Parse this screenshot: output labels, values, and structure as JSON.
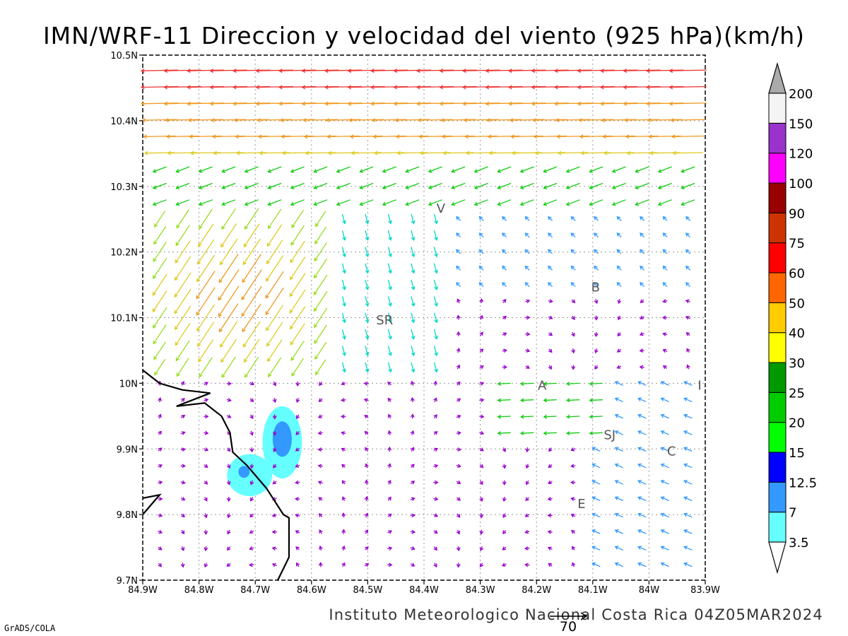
{
  "title": "IMN/WRF-11 Direccion y velocidad del viento (925 hPa)(km/h)",
  "footer": "Instituto Meteorologico Nacional Costa Rica 04Z05MAR2024",
  "credit": "GrADS/COLA",
  "reference_vector_label": "70",
  "map": {
    "lon_range": [
      -84.9,
      -83.9
    ],
    "lat_range": [
      9.7,
      10.5
    ],
    "lon_ticks": [
      {
        "value": -84.9,
        "label": "84.9W"
      },
      {
        "value": -84.8,
        "label": "84.8W"
      },
      {
        "value": -84.7,
        "label": "84.7W"
      },
      {
        "value": -84.6,
        "label": "84.6W"
      },
      {
        "value": -84.5,
        "label": "84.5W"
      },
      {
        "value": -84.4,
        "label": "84.4W"
      },
      {
        "value": -84.3,
        "label": "84.3W"
      },
      {
        "value": -84.2,
        "label": "84.2W"
      },
      {
        "value": -84.1,
        "label": "84.1W"
      },
      {
        "value": -84.0,
        "label": "84W"
      },
      {
        "value": -83.9,
        "label": "83.9W"
      }
    ],
    "lat_ticks": [
      {
        "value": 9.7,
        "label": "9.7N"
      },
      {
        "value": 9.8,
        "label": "9.8N"
      },
      {
        "value": 9.9,
        "label": "9.9N"
      },
      {
        "value": 10.0,
        "label": "10N"
      },
      {
        "value": 10.1,
        "label": "10.1N"
      },
      {
        "value": 10.2,
        "label": "10.2N"
      },
      {
        "value": 10.3,
        "label": "10.3N"
      },
      {
        "value": 10.4,
        "label": "10.4N"
      },
      {
        "value": 10.5,
        "label": "10.5N"
      }
    ],
    "grid": true,
    "place_labels": [
      {
        "text": "V",
        "lon": -84.37,
        "lat": 10.26
      },
      {
        "text": "B",
        "lon": -84.095,
        "lat": 10.14
      },
      {
        "text": "SR",
        "lon": -84.47,
        "lat": 10.09
      },
      {
        "text": "A",
        "lon": -84.19,
        "lat": 9.99
      },
      {
        "text": "I",
        "lon": -83.91,
        "lat": 9.99
      },
      {
        "text": "SJ",
        "lon": -84.07,
        "lat": 9.915
      },
      {
        "text": "C",
        "lon": -83.96,
        "lat": 9.89
      },
      {
        "text": "E",
        "lon": -84.12,
        "lat": 9.81
      }
    ],
    "coastline": [
      [
        [
          -84.9,
          10.02
        ],
        [
          -84.87,
          10.0
        ],
        [
          -84.83,
          9.99
        ],
        [
          -84.78,
          9.985
        ],
        [
          -84.84,
          9.965
        ],
        [
          -84.79,
          9.97
        ],
        [
          -84.76,
          9.95
        ],
        [
          -84.745,
          9.925
        ],
        [
          -84.74,
          9.895
        ],
        [
          -84.715,
          9.875
        ],
        [
          -84.7,
          9.86
        ],
        [
          -84.68,
          9.84
        ],
        [
          -84.665,
          9.82
        ],
        [
          -84.65,
          9.8
        ],
        [
          -84.64,
          9.795
        ],
        [
          -84.64,
          9.735
        ],
        [
          -84.66,
          9.7
        ]
      ],
      [
        [
          -84.9,
          9.825
        ],
        [
          -84.87,
          9.83
        ],
        [
          -84.9,
          9.8
        ]
      ]
    ],
    "calm_areas": [
      {
        "lon": -84.652,
        "lat": 9.91,
        "rx": 0.035,
        "ry": 0.055,
        "speed_class": "3.5"
      },
      {
        "lon": -84.652,
        "lat": 9.915,
        "rx": 0.017,
        "ry": 0.027,
        "speed_class": "7"
      },
      {
        "lon": -84.71,
        "lat": 9.86,
        "rx": 0.04,
        "ry": 0.032,
        "speed_class": "3.5"
      },
      {
        "lon": -84.72,
        "lat": 9.865,
        "rx": 0.01,
        "ry": 0.009,
        "speed_class": "7"
      }
    ]
  },
  "colorbar": {
    "labels": [
      "3.5",
      "7",
      "12.5",
      "15",
      "20",
      "25",
      "30",
      "40",
      "50",
      "60",
      "75",
      "90",
      "100",
      "120",
      "150",
      "200"
    ],
    "colors": [
      "#66ffff",
      "#3399ff",
      "#0000ff",
      "#00ff00",
      "#00cc00",
      "#009900",
      "#ffff00",
      "#ffcc00",
      "#ff6600",
      "#ff0000",
      "#cc3300",
      "#990000",
      "#ff00ff",
      "#9933cc",
      "#f4f4f4",
      "#aaaaaa"
    ],
    "low_color": "#ffffff",
    "high_color": "#aaaaaa"
  },
  "colors": {
    "vector_calm": "#9900cc",
    "vector_blue": "#1a40ff",
    "vector_lblue": "#3399ff",
    "vector_cyan": "#00d8c8",
    "vector_green": "#11cc11",
    "vector_ygreen": "#99dd22",
    "vector_yellow": "#ddcc22",
    "vector_orange": "#ee9922",
    "vector_red": "#ee3333"
  }
}
